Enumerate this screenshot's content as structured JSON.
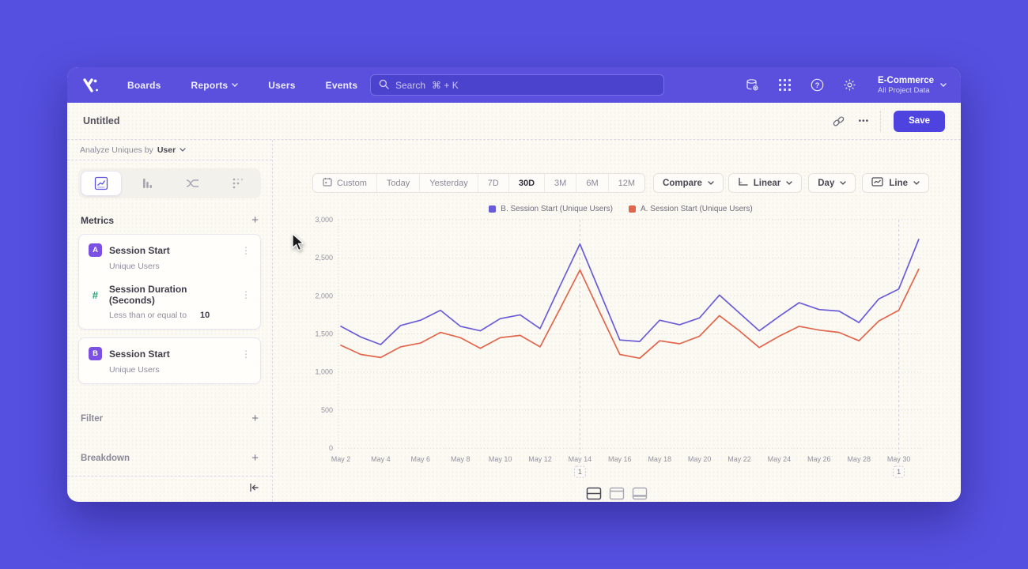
{
  "colors": {
    "brand_purple": "#5a50dd",
    "accent_button": "#4f43e0",
    "series_b_purple": "#6a5cd8",
    "series_a_red": "#e2664c",
    "badge_purple": "#7b50e2",
    "hash_green": "#21a179",
    "canvas_bg": "#fbfaf5"
  },
  "nav": {
    "items": [
      {
        "label": "Boards"
      },
      {
        "label": "Reports"
      },
      {
        "label": "Users"
      },
      {
        "label": "Events"
      }
    ],
    "search": {
      "placeholder": "Search",
      "shortcut": "⌘ + K"
    },
    "project": {
      "name": "E-Commerce",
      "subtitle": "All Project Data"
    }
  },
  "header": {
    "title": "Untitled",
    "save_label": "Save"
  },
  "icons": {
    "kebab": "⋮",
    "ellipsis": "•••"
  },
  "sidebar": {
    "analyze_row": {
      "prefix": "Analyze Uniques by",
      "value": "User"
    },
    "metrics": {
      "title": "Metrics",
      "plus": "+"
    },
    "metrics_items": [
      {
        "badge": "A",
        "name": "Session Start",
        "sub": "Unique Users"
      },
      {
        "badge": "#",
        "name": "Session Duration (Seconds)",
        "sub": "Less than or equal to",
        "value": "10"
      },
      {
        "badge": "B",
        "name": "Session Start",
        "sub": "Unique Users"
      }
    ],
    "filter": {
      "title": "Filter",
      "plus": "+"
    },
    "breakdown": {
      "title": "Breakdown",
      "plus": "+"
    }
  },
  "controls": {
    "ranges": [
      "Custom",
      "Today",
      "Yesterday",
      "7D",
      "30D",
      "3M",
      "6M",
      "12M"
    ],
    "selected_range": "30D",
    "compare": "Compare",
    "scale": "Linear",
    "granularity": "Day",
    "chart_type": "Line"
  },
  "legend": [
    {
      "label": "B. Session Start (Unique Users)",
      "color": "#6a5cd8"
    },
    {
      "label": "A. Session Start (Unique Users)",
      "color": "#e2664c"
    }
  ],
  "chart_data": {
    "type": "line",
    "title": "",
    "xlabel": "",
    "ylabel": "",
    "ylim": [
      0,
      3000
    ],
    "yticks": [
      0,
      500,
      1000,
      1500,
      2000,
      2500,
      3000
    ],
    "grid": "dotted-horizontal",
    "legend_position": "top-center",
    "x": [
      "May 2",
      "May 3",
      "May 4",
      "May 5",
      "May 6",
      "May 7",
      "May 8",
      "May 9",
      "May 10",
      "May 11",
      "May 12",
      "May 13",
      "May 14",
      "May 15",
      "May 16",
      "May 17",
      "May 18",
      "May 19",
      "May 20",
      "May 21",
      "May 22",
      "May 23",
      "May 24",
      "May 25",
      "May 26",
      "May 27",
      "May 28",
      "May 29",
      "May 30",
      "May 31"
    ],
    "x_tick_step": 2,
    "series": [
      {
        "name": "B. Session Start (Unique Users)",
        "color": "#6a5cd8",
        "values": [
          1600,
          1460,
          1360,
          1610,
          1680,
          1810,
          1600,
          1540,
          1700,
          1750,
          1570,
          2130,
          2680,
          2050,
          1420,
          1400,
          1680,
          1620,
          1710,
          2010,
          1775,
          1540,
          1730,
          1910,
          1820,
          1800,
          1650,
          1960,
          2090,
          2740
        ]
      },
      {
        "name": "A. Session Start (Unique Users)",
        "color": "#e2664c",
        "values": [
          1350,
          1230,
          1190,
          1330,
          1380,
          1520,
          1450,
          1310,
          1450,
          1480,
          1330,
          1830,
          2340,
          1780,
          1230,
          1180,
          1410,
          1370,
          1470,
          1740,
          1540,
          1320,
          1470,
          1600,
          1550,
          1520,
          1410,
          1670,
          1810,
          2350
        ]
      }
    ],
    "annotations": [
      {
        "x_index": 12,
        "x_label": "May 14",
        "badge": "1"
      },
      {
        "x_index": 28,
        "x_label": "May 30",
        "badge": "1"
      }
    ]
  }
}
